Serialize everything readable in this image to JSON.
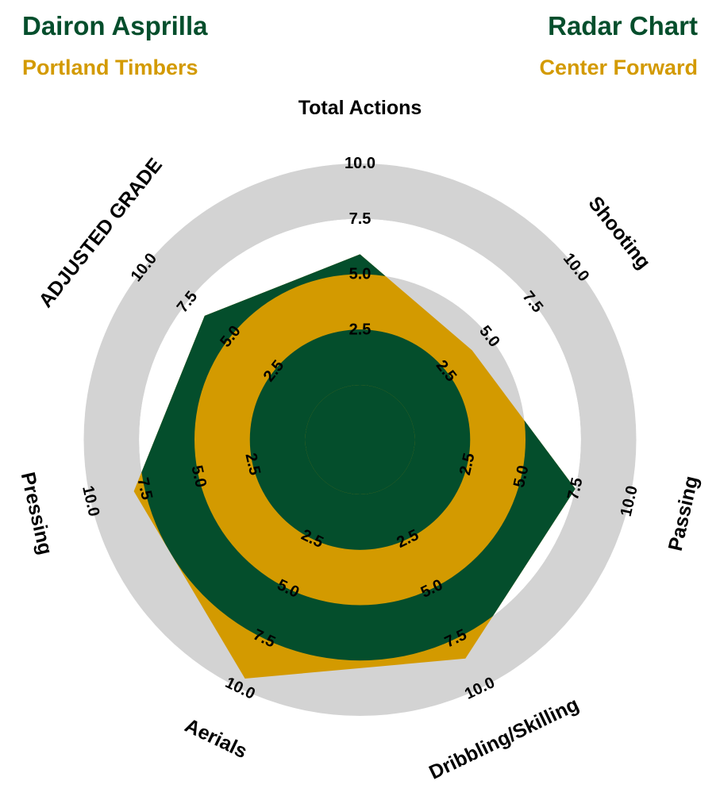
{
  "header": {
    "player": "Dairon Asprilla",
    "team": "Portland Timbers",
    "chart_title": "Radar Chart",
    "position": "Center Forward"
  },
  "colors": {
    "primary": "#044e2c",
    "secondary": "#d39a00",
    "ring": "#d3d3d3",
    "background": "#ffffff"
  },
  "chart_data": {
    "type": "radar",
    "axes": [
      "Total Actions",
      "Shooting",
      "Passing",
      "Dribbling/Skilling",
      "Aerials",
      "Pressing",
      "ADJUSTED GRADE"
    ],
    "values": [
      5.9,
      4.0,
      7.5,
      8.5,
      9.5,
      8.0,
      6.5
    ],
    "range": [
      0,
      10
    ],
    "ticks": [
      "2.5",
      "5.0",
      "7.5",
      "10.0"
    ],
    "tick_values": [
      2.5,
      5.0,
      7.5,
      10.0
    ],
    "grid": "alternating concentric rings"
  }
}
